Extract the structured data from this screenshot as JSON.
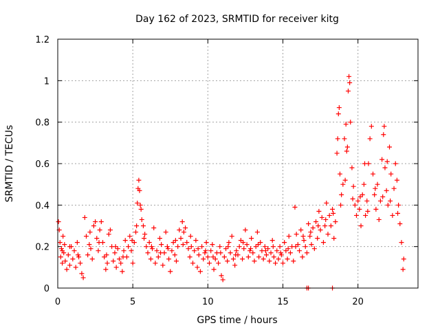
{
  "chart_data": {
    "type": "scatter",
    "title": "Day 162 of 2023, SRMTID for receiver kitg",
    "xlabel": "GPS time / hours",
    "ylabel": "SRMTID / TECUs",
    "xlim": [
      0,
      24
    ],
    "ylim": [
      0,
      1.2
    ],
    "xticks": [
      0,
      5,
      10,
      15,
      20
    ],
    "xtick_labels": [
      "0",
      "5",
      "10",
      "15",
      "20"
    ],
    "yticks": [
      0,
      0.2,
      0.4,
      0.6,
      0.8,
      1.0,
      1.2
    ],
    "ytick_labels": [
      "0",
      "0.2",
      "0.4",
      "0.6",
      "0.8",
      "1",
      "1.2"
    ],
    "grid": true,
    "marker": "+",
    "color": "#ff0000",
    "series": [
      {
        "name": "SRMTID",
        "points": [
          [
            0.05,
            0.32
          ],
          [
            0.1,
            0.28
          ],
          [
            0.15,
            0.22
          ],
          [
            0.2,
            0.15
          ],
          [
            0.25,
            0.19
          ],
          [
            0.3,
            0.12
          ],
          [
            0.35,
            0.25
          ],
          [
            0.4,
            0.17
          ],
          [
            0.45,
            0.21
          ],
          [
            0.5,
            0.13
          ],
          [
            0.6,
            0.09
          ],
          [
            0.7,
            0.16
          ],
          [
            0.8,
            0.11
          ],
          [
            0.9,
            0.2
          ],
          [
            1.0,
            0.14
          ],
          [
            1.1,
            0.18
          ],
          [
            1.2,
            0.1
          ],
          [
            1.3,
            0.22
          ],
          [
            1.4,
            0.15
          ],
          [
            1.5,
            0.12
          ],
          [
            1.6,
            0.07
          ],
          [
            1.7,
            0.05
          ],
          [
            1.8,
            0.34
          ],
          [
            1.9,
            0.25
          ],
          [
            2.0,
            0.16
          ],
          [
            2.1,
            0.21
          ],
          [
            2.2,
            0.19
          ],
          [
            2.3,
            0.14
          ],
          [
            2.4,
            0.3
          ],
          [
            2.5,
            0.32
          ],
          [
            2.6,
            0.24
          ],
          [
            2.7,
            0.18
          ],
          [
            2.8,
            0.28
          ],
          [
            2.9,
            0.32
          ],
          [
            3.0,
            0.22
          ],
          [
            3.1,
            0.15
          ],
          [
            3.2,
            0.09
          ],
          [
            3.3,
            0.12
          ],
          [
            3.4,
            0.26
          ],
          [
            3.5,
            0.28
          ],
          [
            3.6,
            0.2
          ],
          [
            3.7,
            0.13
          ],
          [
            3.8,
            0.17
          ],
          [
            3.9,
            0.1
          ],
          [
            4.0,
            0.19
          ],
          [
            4.1,
            0.14
          ],
          [
            4.2,
            0.12
          ],
          [
            4.3,
            0.08
          ],
          [
            4.4,
            0.18
          ],
          [
            4.5,
            0.23
          ],
          [
            4.6,
            0.15
          ],
          [
            4.7,
            0.2
          ],
          [
            4.8,
            0.25
          ],
          [
            4.9,
            0.18
          ],
          [
            5.0,
            0.12
          ],
          [
            5.1,
            0.22
          ],
          [
            5.2,
            0.27
          ],
          [
            5.3,
            0.41
          ],
          [
            5.35,
            0.48
          ],
          [
            5.4,
            0.52
          ],
          [
            5.45,
            0.47
          ],
          [
            5.5,
            0.4
          ],
          [
            5.55,
            0.38
          ],
          [
            5.6,
            0.33
          ],
          [
            5.7,
            0.3
          ],
          [
            5.8,
            0.26
          ],
          [
            5.9,
            0.2
          ],
          [
            6.0,
            0.17
          ],
          [
            6.1,
            0.22
          ],
          [
            6.2,
            0.14
          ],
          [
            6.3,
            0.19
          ],
          [
            6.4,
            0.29
          ],
          [
            6.5,
            0.12
          ],
          [
            6.6,
            0.18
          ],
          [
            6.7,
            0.15
          ],
          [
            6.8,
            0.24
          ],
          [
            6.9,
            0.21
          ],
          [
            7.0,
            0.11
          ],
          [
            7.1,
            0.17
          ],
          [
            7.2,
            0.27
          ],
          [
            7.3,
            0.2
          ],
          [
            7.4,
            0.14
          ],
          [
            7.5,
            0.08
          ],
          [
            7.6,
            0.18
          ],
          [
            7.7,
            0.22
          ],
          [
            7.8,
            0.16
          ],
          [
            7.9,
            0.13
          ],
          [
            8.0,
            0.2
          ],
          [
            8.1,
            0.28
          ],
          [
            8.2,
            0.24
          ],
          [
            8.3,
            0.32
          ],
          [
            8.4,
            0.27
          ],
          [
            8.5,
            0.29
          ],
          [
            8.6,
            0.22
          ],
          [
            8.7,
            0.19
          ],
          [
            8.8,
            0.15
          ],
          [
            8.9,
            0.2
          ],
          [
            9.0,
            0.12
          ],
          [
            9.1,
            0.18
          ],
          [
            9.2,
            0.23
          ],
          [
            9.3,
            0.1
          ],
          [
            9.4,
            0.16
          ],
          [
            9.5,
            0.08
          ],
          [
            9.6,
            0.2
          ],
          [
            9.7,
            0.14
          ],
          [
            9.8,
            0.17
          ],
          [
            9.9,
            0.22
          ],
          [
            10.0,
            0.15
          ],
          [
            10.1,
            0.12
          ],
          [
            10.2,
            0.18
          ],
          [
            10.3,
            0.21
          ],
          [
            10.4,
            0.09
          ],
          [
            10.5,
            0.14
          ],
          [
            10.6,
            0.17
          ],
          [
            10.7,
            0.12
          ],
          [
            10.8,
            0.2
          ],
          [
            10.9,
            0.06
          ],
          [
            11.0,
            0.04
          ],
          [
            11.1,
            0.15
          ],
          [
            11.2,
            0.19
          ],
          [
            11.3,
            0.13
          ],
          [
            11.4,
            0.22
          ],
          [
            11.5,
            0.17
          ],
          [
            11.6,
            0.25
          ],
          [
            11.7,
            0.14
          ],
          [
            11.8,
            0.11
          ],
          [
            11.9,
            0.18
          ],
          [
            12.0,
            0.16
          ],
          [
            12.1,
            0.2
          ],
          [
            12.2,
            0.23
          ],
          [
            12.3,
            0.14
          ],
          [
            12.4,
            0.19
          ],
          [
            12.5,
            0.28
          ],
          [
            12.6,
            0.21
          ],
          [
            12.7,
            0.15
          ],
          [
            12.8,
            0.18
          ],
          [
            12.9,
            0.24
          ],
          [
            13.0,
            0.17
          ],
          [
            13.1,
            0.13
          ],
          [
            13.2,
            0.2
          ],
          [
            13.3,
            0.27
          ],
          [
            13.4,
            0.15
          ],
          [
            13.5,
            0.22
          ],
          [
            13.6,
            0.18
          ],
          [
            13.7,
            0.14
          ],
          [
            13.8,
            0.2
          ],
          [
            13.9,
            0.16
          ],
          [
            14.0,
            0.19
          ],
          [
            14.1,
            0.13
          ],
          [
            14.2,
            0.17
          ],
          [
            14.3,
            0.23
          ],
          [
            14.4,
            0.15
          ],
          [
            14.5,
            0.12
          ],
          [
            14.6,
            0.18
          ],
          [
            14.7,
            0.14
          ],
          [
            14.8,
            0.2
          ],
          [
            14.9,
            0.16
          ],
          [
            15.0,
            0.12
          ],
          [
            15.1,
            0.22
          ],
          [
            15.2,
            0.18
          ],
          [
            15.3,
            0.14
          ],
          [
            15.4,
            0.25
          ],
          [
            15.5,
            0.17
          ],
          [
            15.6,
            0.2
          ],
          [
            15.7,
            0.13
          ],
          [
            15.8,
            0.39
          ],
          [
            15.9,
            0.26
          ],
          [
            16.0,
            0.21
          ],
          [
            16.1,
            0.18
          ],
          [
            16.2,
            0.28
          ],
          [
            16.3,
            0.15
          ],
          [
            16.4,
            0.23
          ],
          [
            16.5,
            0.2
          ],
          [
            16.6,
            0.17
          ],
          [
            16.7,
            0.31
          ],
          [
            16.8,
            0.25
          ],
          [
            16.9,
            0.21
          ],
          [
            17.0,
            0.29
          ],
          [
            17.1,
            0.19
          ],
          [
            17.2,
            0.32
          ],
          [
            17.3,
            0.24
          ],
          [
            17.4,
            0.37
          ],
          [
            17.5,
            0.28
          ],
          [
            17.6,
            0.34
          ],
          [
            17.7,
            0.22
          ],
          [
            17.8,
            0.3
          ],
          [
            17.9,
            0.41
          ],
          [
            18.0,
            0.26
          ],
          [
            18.1,
            0.35
          ],
          [
            18.2,
            0.3
          ],
          [
            18.3,
            0.38
          ],
          [
            18.4,
            0.24
          ],
          [
            18.5,
            0.32
          ],
          [
            18.6,
            0.65
          ],
          [
            18.7,
            0.84
          ],
          [
            18.75,
            0.87
          ],
          [
            18.8,
            0.55
          ],
          [
            18.9,
            0.45
          ],
          [
            19.0,
            0.5
          ],
          [
            19.1,
            0.72
          ],
          [
            19.2,
            0.79
          ],
          [
            19.3,
            0.68
          ],
          [
            19.35,
            0.95
          ],
          [
            19.4,
            1.02
          ],
          [
            19.45,
            0.99
          ],
          [
            19.5,
            0.8
          ],
          [
            19.6,
            0.58
          ],
          [
            19.7,
            0.49
          ],
          [
            19.8,
            0.4
          ],
          [
            19.9,
            0.35
          ],
          [
            20.0,
            0.42
          ],
          [
            20.1,
            0.38
          ],
          [
            20.2,
            0.3
          ],
          [
            20.3,
            0.45
          ],
          [
            20.4,
            0.5
          ],
          [
            20.5,
            0.35
          ],
          [
            20.6,
            0.42
          ],
          [
            20.7,
            0.6
          ],
          [
            20.8,
            0.72
          ],
          [
            20.9,
            0.78
          ],
          [
            21.0,
            0.55
          ],
          [
            21.1,
            0.45
          ],
          [
            21.2,
            0.38
          ],
          [
            21.3,
            0.5
          ],
          [
            21.4,
            0.33
          ],
          [
            21.5,
            0.42
          ],
          [
            21.6,
            0.62
          ],
          [
            21.7,
            0.74
          ],
          [
            21.75,
            0.78
          ],
          [
            21.8,
            0.58
          ],
          [
            21.9,
            0.47
          ],
          [
            22.0,
            0.4
          ],
          [
            22.1,
            0.68
          ],
          [
            22.2,
            0.55
          ],
          [
            22.3,
            0.35
          ],
          [
            22.4,
            0.48
          ],
          [
            22.5,
            0.6
          ],
          [
            22.6,
            0.52
          ],
          [
            22.7,
            0.4
          ],
          [
            22.8,
            0.31
          ],
          [
            22.9,
            0.22
          ],
          [
            23.0,
            0.09
          ],
          [
            23.05,
            0.14
          ],
          [
            16.6,
            0.0
          ],
          [
            16.7,
            0.0
          ],
          [
            18.3,
            0.0
          ],
          [
            0.3,
            0.18
          ],
          [
            0.8,
            0.2
          ],
          [
            1.35,
            0.16
          ],
          [
            2.15,
            0.27
          ],
          [
            2.75,
            0.22
          ],
          [
            3.25,
            0.16
          ],
          [
            3.85,
            0.2
          ],
          [
            4.35,
            0.15
          ],
          [
            4.95,
            0.23
          ],
          [
            5.25,
            0.3
          ],
          [
            5.75,
            0.24
          ],
          [
            6.25,
            0.2
          ],
          [
            6.85,
            0.17
          ],
          [
            7.35,
            0.19
          ],
          [
            7.85,
            0.23
          ],
          [
            8.35,
            0.21
          ],
          [
            8.85,
            0.25
          ],
          [
            9.35,
            0.19
          ],
          [
            9.85,
            0.18
          ],
          [
            10.35,
            0.15
          ],
          [
            10.85,
            0.17
          ],
          [
            11.35,
            0.2
          ],
          [
            11.85,
            0.16
          ],
          [
            12.35,
            0.22
          ],
          [
            12.85,
            0.19
          ],
          [
            13.35,
            0.21
          ],
          [
            13.85,
            0.18
          ],
          [
            14.35,
            0.2
          ],
          [
            14.85,
            0.17
          ],
          [
            15.35,
            0.19
          ],
          [
            15.85,
            0.2
          ],
          [
            16.35,
            0.25
          ],
          [
            16.85,
            0.27
          ],
          [
            17.35,
            0.3
          ],
          [
            17.85,
            0.33
          ],
          [
            18.35,
            0.36
          ],
          [
            18.85,
            0.4
          ],
          [
            19.15,
            0.52
          ],
          [
            19.65,
            0.43
          ],
          [
            20.15,
            0.44
          ],
          [
            20.65,
            0.37
          ],
          [
            21.15,
            0.48
          ],
          [
            21.65,
            0.44
          ],
          [
            22.15,
            0.42
          ],
          [
            22.65,
            0.36
          ],
          [
            18.65,
            0.72
          ],
          [
            19.25,
            0.66
          ],
          [
            20.45,
            0.6
          ],
          [
            21.95,
            0.61
          ]
        ]
      }
    ]
  }
}
